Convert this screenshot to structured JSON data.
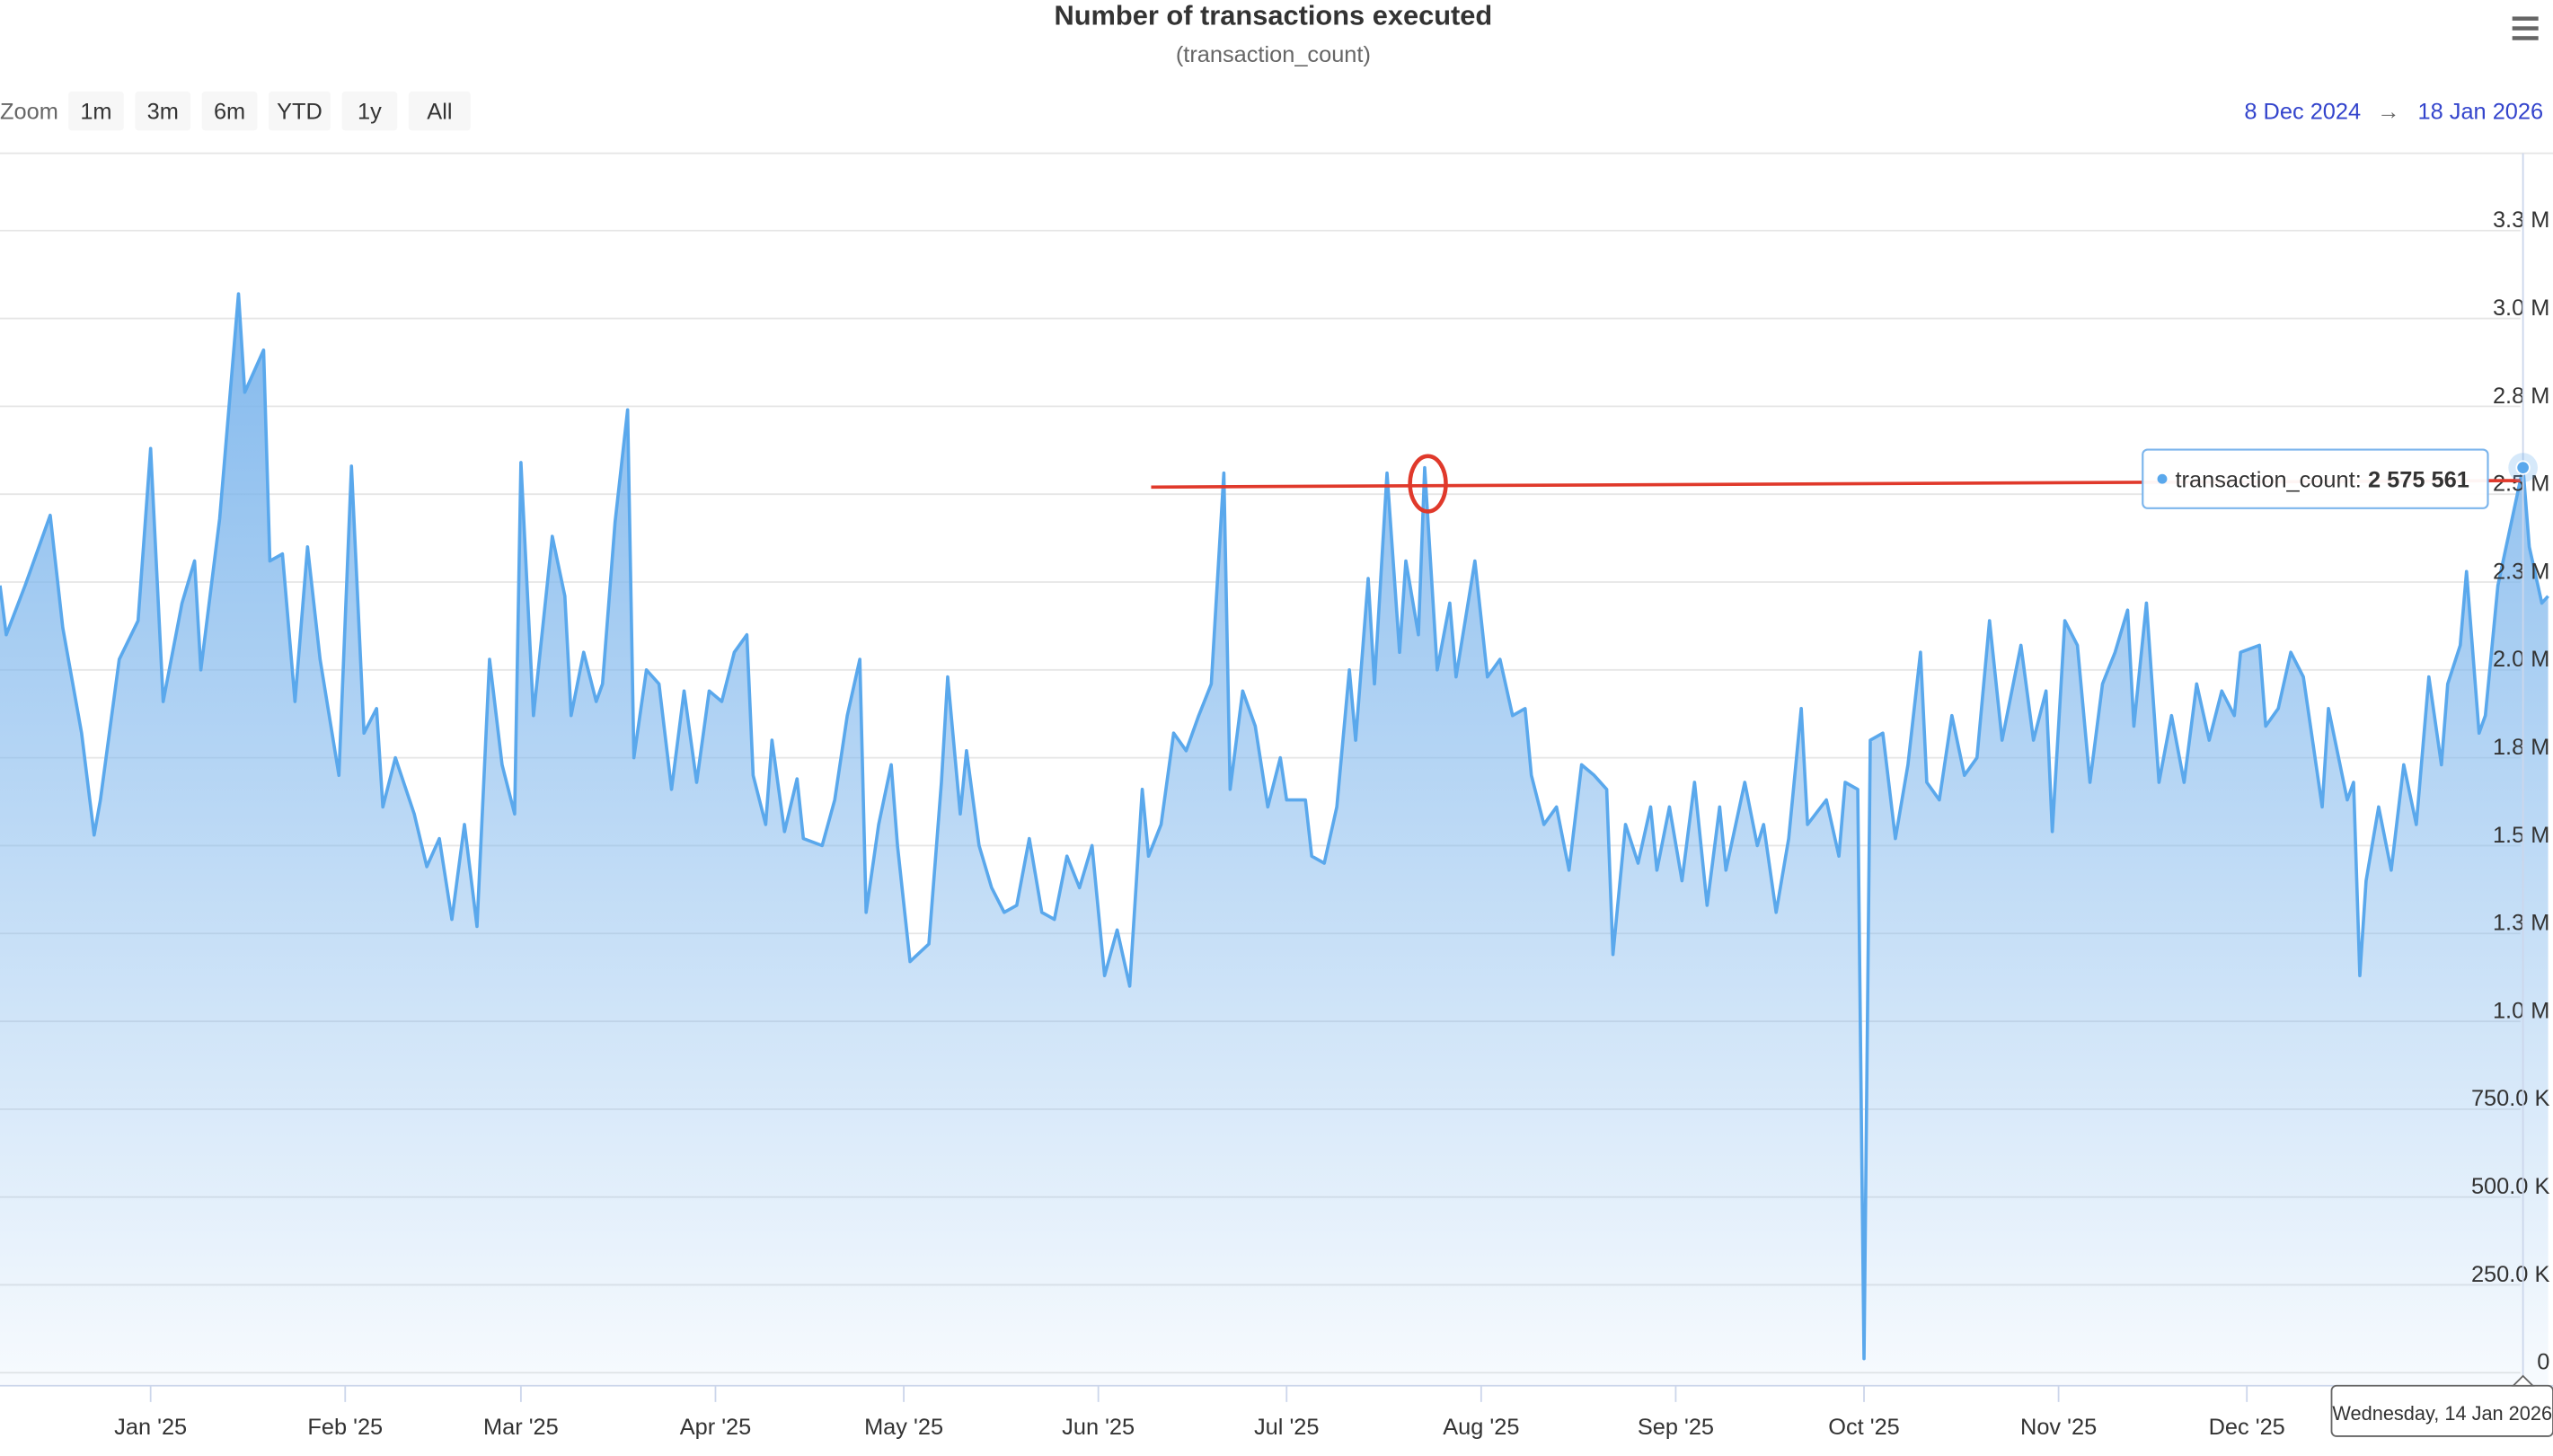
{
  "chart_data": {
    "type": "area",
    "title": "Number of transactions executed",
    "subtitle": "(transaction_count)",
    "zoom": {
      "label": "Zoom",
      "buttons": [
        "1m",
        "3m",
        "6m",
        "YTD",
        "1y",
        "All"
      ]
    },
    "range": {
      "from": "8 Dec 2024",
      "arrow": "→",
      "to": "18 Jan 2026"
    },
    "color": "#5aa8ec",
    "grid": true,
    "xlim": [
      "2024-12-08",
      "2026-01-18"
    ],
    "xticks": [
      {
        "value": "2025-01-01",
        "label": "Jan '25"
      },
      {
        "value": "2025-02-01",
        "label": "Feb '25"
      },
      {
        "value": "2025-03-01",
        "label": "Mar '25"
      },
      {
        "value": "2025-04-01",
        "label": "Apr '25"
      },
      {
        "value": "2025-05-01",
        "label": "May '25"
      },
      {
        "value": "2025-06-01",
        "label": "Jun '25"
      },
      {
        "value": "2025-07-01",
        "label": "Jul '25"
      },
      {
        "value": "2025-08-01",
        "label": "Aug '25"
      },
      {
        "value": "2025-09-01",
        "label": "Sep '25"
      },
      {
        "value": "2025-10-01",
        "label": "Oct '25"
      },
      {
        "value": "2025-11-01",
        "label": "Nov '25"
      },
      {
        "value": "2025-12-01",
        "label": "Dec '25"
      }
    ],
    "ylim": [
      -37000,
      3470000
    ],
    "yticks": [
      0,
      {
        "value": 250000,
        "label": "250.0 K"
      },
      {
        "value": 500000,
        "label": "500.0 K"
      },
      {
        "value": 750000,
        "label": "750.0 K"
      },
      {
        "value": 1000000,
        "label": "1.0 M"
      },
      {
        "value": 1250000,
        "label": "1.3 M"
      },
      {
        "value": 1500000,
        "label": "1.5 M"
      },
      {
        "value": 1750000,
        "label": "1.8 M"
      },
      {
        "value": 2000000,
        "label": "2.0 M"
      },
      {
        "value": 2250000,
        "label": "2.3 M"
      },
      {
        "value": 2500000,
        "label": "2.5 M"
      },
      {
        "value": 2750000,
        "label": "2.8 M"
      },
      {
        "value": 3000000,
        "label": "3.0 M"
      },
      {
        "value": 3250000,
        "label": "3.3 M"
      }
    ],
    "x": [
      "2024-12-08",
      "2024-12-09",
      "2024-12-12",
      "2024-12-16",
      "2024-12-18",
      "2024-12-21",
      "2024-12-23",
      "2024-12-24",
      "2024-12-27",
      "2024-12-30",
      "2025-01-01",
      "2025-01-03",
      "2025-01-06",
      "2025-01-08",
      "2025-01-09",
      "2025-01-12",
      "2025-01-15",
      "2025-01-16",
      "2025-01-19",
      "2025-01-20",
      "2025-01-22",
      "2025-01-24",
      "2025-01-26",
      "2025-01-28",
      "2025-01-31",
      "2025-02-02",
      "2025-02-04",
      "2025-02-06",
      "2025-02-07",
      "2025-02-09",
      "2025-02-12",
      "2025-02-14",
      "2025-02-16",
      "2025-02-18",
      "2025-02-20",
      "2025-02-22",
      "2025-02-24",
      "2025-02-26",
      "2025-02-28",
      "2025-03-01",
      "2025-03-03",
      "2025-03-06",
      "2025-03-08",
      "2025-03-09",
      "2025-03-11",
      "2025-03-13",
      "2025-03-14",
      "2025-03-16",
      "2025-03-18",
      "2025-03-19",
      "2025-03-21",
      "2025-03-23",
      "2025-03-25",
      "2025-03-27",
      "2025-03-29",
      "2025-03-31",
      "2025-04-02",
      "2025-04-04",
      "2025-04-06",
      "2025-04-07",
      "2025-04-09",
      "2025-04-10",
      "2025-04-12",
      "2025-04-14",
      "2025-04-15",
      "2025-04-18",
      "2025-04-20",
      "2025-04-22",
      "2025-04-24",
      "2025-04-25",
      "2025-04-27",
      "2025-04-29",
      "2025-04-30",
      "2025-05-02",
      "2025-05-05",
      "2025-05-07",
      "2025-05-08",
      "2025-05-10",
      "2025-05-11",
      "2025-05-13",
      "2025-05-15",
      "2025-05-17",
      "2025-05-19",
      "2025-05-21",
      "2025-05-23",
      "2025-05-25",
      "2025-05-27",
      "2025-05-29",
      "2025-05-31",
      "2025-06-02",
      "2025-06-04",
      "2025-06-06",
      "2025-06-08",
      "2025-06-09",
      "2025-06-11",
      "2025-06-13",
      "2025-06-15",
      "2025-06-17",
      "2025-06-19",
      "2025-06-21",
      "2025-06-22",
      "2025-06-24",
      "2025-06-26",
      "2025-06-28",
      "2025-06-30",
      "2025-07-01",
      "2025-07-04",
      "2025-07-05",
      "2025-07-07",
      "2025-07-09",
      "2025-07-11",
      "2025-07-12",
      "2025-07-14",
      "2025-07-15",
      "2025-07-17",
      "2025-07-19",
      "2025-07-20",
      "2025-07-22",
      "2025-07-23",
      "2025-07-25",
      "2025-07-27",
      "2025-07-28",
      "2025-07-31",
      "2025-08-02",
      "2025-08-04",
      "2025-08-06",
      "2025-08-08",
      "2025-08-09",
      "2025-08-11",
      "2025-08-13",
      "2025-08-15",
      "2025-08-17",
      "2025-08-19",
      "2025-08-21",
      "2025-08-22",
      "2025-08-24",
      "2025-08-26",
      "2025-08-28",
      "2025-08-29",
      "2025-08-31",
      "2025-09-02",
      "2025-09-04",
      "2025-09-06",
      "2025-09-08",
      "2025-09-09",
      "2025-09-12",
      "2025-09-14",
      "2025-09-15",
      "2025-09-17",
      "2025-09-19",
      "2025-09-21",
      "2025-09-22",
      "2025-09-25",
      "2025-09-27",
      "2025-09-28",
      "2025-09-30",
      "2025-10-01",
      "2025-10-02",
      "2025-10-04",
      "2025-10-06",
      "2025-10-08",
      "2025-10-10",
      "2025-10-11",
      "2025-10-13",
      "2025-10-15",
      "2025-10-17",
      "2025-10-19",
      "2025-10-21",
      "2025-10-23",
      "2025-10-26",
      "2025-10-28",
      "2025-10-30",
      "2025-10-31",
      "2025-11-02",
      "2025-11-04",
      "2025-11-06",
      "2025-11-08",
      "2025-11-10",
      "2025-11-12",
      "2025-11-13",
      "2025-11-15",
      "2025-11-17",
      "2025-11-19",
      "2025-11-21",
      "2025-11-23",
      "2025-11-25",
      "2025-11-27",
      "2025-11-29",
      "2025-11-30",
      "2025-12-03",
      "2025-12-04",
      "2025-12-06",
      "2025-12-08",
      "2025-12-10",
      "2025-12-13",
      "2025-12-14",
      "2025-12-17",
      "2025-12-18",
      "2025-12-19",
      "2025-12-20",
      "2025-12-22",
      "2025-12-24",
      "2025-12-26",
      "2025-12-28",
      "2025-12-30",
      "2026-01-01",
      "2026-01-02",
      "2026-01-04",
      "2026-01-05",
      "2026-01-07",
      "2026-01-08",
      "2026-01-10",
      "2026-01-14",
      "2026-01-15",
      "2026-01-17",
      "2026-01-18"
    ],
    "values": [
      2240000,
      2100000,
      2240000,
      2440000,
      2120000,
      1820000,
      1530000,
      1630000,
      2030000,
      2140000,
      2630000,
      1910000,
      2190000,
      2310000,
      2000000,
      2430000,
      3070000,
      2790000,
      2910000,
      2310000,
      2330000,
      1910000,
      2350000,
      2030000,
      1700000,
      2580000,
      1820000,
      1890000,
      1610000,
      1750000,
      1590000,
      1440000,
      1520000,
      1290000,
      1560000,
      1270000,
      2030000,
      1730000,
      1590000,
      2590000,
      1870000,
      2380000,
      2210000,
      1870000,
      2050000,
      1910000,
      1960000,
      2420000,
      2740000,
      1750000,
      2000000,
      1960000,
      1660000,
      1940000,
      1680000,
      1940000,
      1910000,
      2050000,
      2100000,
      1700000,
      1560000,
      1800000,
      1540000,
      1690000,
      1520000,
      1500000,
      1630000,
      1870000,
      2030000,
      1310000,
      1560000,
      1730000,
      1500000,
      1170000,
      1220000,
      1680000,
      1980000,
      1590000,
      1770000,
      1500000,
      1380000,
      1310000,
      1330000,
      1520000,
      1310000,
      1290000,
      1470000,
      1380000,
      1500000,
      1130000,
      1260000,
      1100000,
      1660000,
      1470000,
      1560000,
      1820000,
      1770000,
      1870000,
      1960000,
      2560000,
      1660000,
      1940000,
      1840000,
      1610000,
      1750000,
      1630000,
      1630000,
      1470000,
      1450000,
      1610000,
      2000000,
      1800000,
      2260000,
      1960000,
      2560000,
      2050000,
      2310000,
      2100000,
      2575561,
      2000000,
      2190000,
      1980000,
      2310000,
      1980000,
      2030000,
      1870000,
      1890000,
      1700000,
      1560000,
      1610000,
      1430000,
      1730000,
      1700000,
      1660000,
      1190000,
      1560000,
      1450000,
      1610000,
      1430000,
      1610000,
      1400000,
      1680000,
      1330000,
      1610000,
      1430000,
      1680000,
      1500000,
      1560000,
      1310000,
      1520000,
      1890000,
      1560000,
      1630000,
      1470000,
      1680000,
      1660000,
      40000,
      1800000,
      1820000,
      1520000,
      1730000,
      2050000,
      1680000,
      1630000,
      1870000,
      1700000,
      1750000,
      2140000,
      1800000,
      2070000,
      1800000,
      1940000,
      1540000,
      2140000,
      2070000,
      1680000,
      1960000,
      2050000,
      2170000,
      1840000,
      2190000,
      1680000,
      1870000,
      1680000,
      1960000,
      1800000,
      1940000,
      1870000,
      2050000,
      2070000,
      1840000,
      1890000,
      2050000,
      1980000,
      1610000,
      1890000,
      1630000,
      1680000,
      1130000,
      1400000,
      1610000,
      1430000,
      1730000,
      1560000,
      1980000,
      1730000,
      1960000,
      2070000,
      2280000,
      1820000,
      1870000,
      2240000,
      2575561,
      2350000,
      2190000,
      2210000
    ],
    "tooltip": {
      "series_label": "transaction_count:",
      "value": 2575561,
      "value_label": "2 575 561",
      "x": "2026-01-14",
      "date_label": "Wednesday, 14 Jan 2026"
    }
  }
}
